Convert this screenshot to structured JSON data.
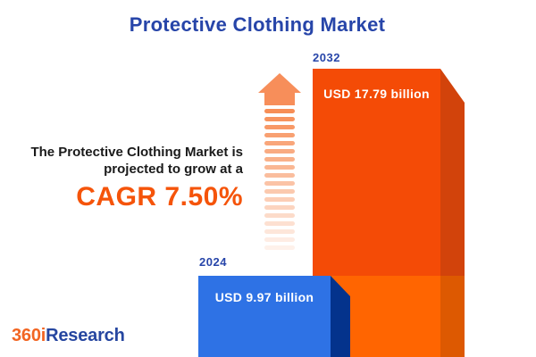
{
  "title": "Protective Clothing Market",
  "annotation": {
    "line1": "The Protective Clothing Market is",
    "line2": "projected to grow at a",
    "cagr": "CAGR 7.50%"
  },
  "bars": {
    "y2024": {
      "year": "2024",
      "value_label": "USD 9.97 billion"
    },
    "y2032": {
      "year": "2032",
      "value_label": "USD 17.79 billion"
    }
  },
  "logo": {
    "prefix": "360i",
    "suffix": "Research"
  },
  "colors": {
    "title_blue": "#2745A9",
    "body_text": "#1A1A1A",
    "cagr_orange": "#F5540A",
    "arrow_orange": "#F78E5A",
    "bar_2024_front": "#2E72E5",
    "bar_2024_side": "#04338C",
    "bar_2032_front_top": "#F44B06",
    "bar_2032_front_bottom": "#FF6501",
    "bar_2032_side_top": "#D2430B",
    "bar_2032_side_bottom": "#DD5901",
    "logo_orange": "#F26522",
    "logo_blue": "#2646A0"
  },
  "chart_data": {
    "type": "bar",
    "title": "Protective Clothing Market",
    "categories": [
      "2024",
      "2032"
    ],
    "values": [
      9.97,
      17.79
    ],
    "unit": "USD billion",
    "value_labels": [
      "USD 9.97 billion",
      "USD 17.79 billion"
    ],
    "cagr_percent": 7.5,
    "annotation_text": "The Protective Clothing Market is projected to grow at a CAGR 7.50%",
    "legend_position": "none",
    "grid": false
  }
}
